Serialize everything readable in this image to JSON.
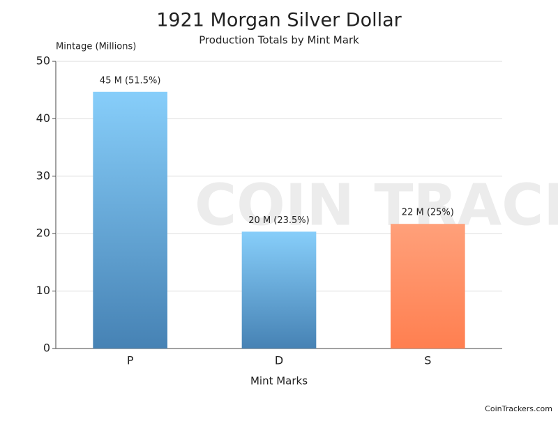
{
  "chart_data": {
    "type": "bar",
    "title": "1921 Morgan Silver Dollar",
    "subtitle": "Production Totals by Mint Mark",
    "y_label": "Mintage (Millions)",
    "x_label": "Mint Marks",
    "categories": [
      "P",
      "D",
      "S"
    ],
    "values": [
      44.69,
      20.345,
      21.695
    ],
    "value_labels": [
      "45 M (51.5%)",
      "20 M (23.5%)",
      "22 M (25%)"
    ],
    "colors": [
      [
        "#87cefa",
        "#4682b4"
      ],
      [
        "#87cefa",
        "#4682b4"
      ],
      [
        "#ffa07a",
        "#ff7f50"
      ]
    ],
    "ylim": [
      0,
      50
    ],
    "yticks": [
      0,
      10,
      20,
      30,
      40,
      50
    ],
    "grid": true,
    "watermark": "COIN TRACKERS",
    "footer": "CoinTrackers.com"
  }
}
